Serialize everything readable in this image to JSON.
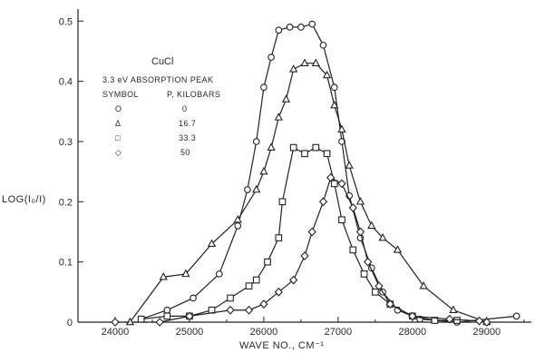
{
  "chart_data": {
    "type": "line",
    "title": "CuCl",
    "subtitle": "3.3 eV ABSORPTION PEAK",
    "xlabel": "WAVE NO., CM⁻¹",
    "ylabel": "LOG(I₀/I)",
    "xlim": [
      23500,
      29600
    ],
    "ylim": [
      0,
      0.52
    ],
    "x_ticks": [
      {
        "value": 24000,
        "label": "24000"
      },
      {
        "value": 25000,
        "label": "25000"
      },
      {
        "value": 26000,
        "label": "26000"
      },
      {
        "value": 27000,
        "label": "27000"
      },
      {
        "value": 28000,
        "label": "28000"
      },
      {
        "value": 29000,
        "label": "29000"
      }
    ],
    "y_ticks": [
      {
        "value": 0,
        "label": "0"
      },
      {
        "value": 0.1,
        "label": "0.1"
      },
      {
        "value": 0.2,
        "label": "0.2"
      },
      {
        "value": 0.3,
        "label": "0.3"
      },
      {
        "value": 0.4,
        "label": "0.4"
      },
      {
        "value": 0.5,
        "label": "0.5"
      }
    ],
    "grid": false,
    "legend": {
      "placement": "top-left",
      "header_symbol": "SYMBOL",
      "header_param": "P, KILOBARS",
      "entries": [
        {
          "symbol": "circle",
          "symbol_text": "O",
          "value": "0"
        },
        {
          "symbol": "triangle",
          "symbol_text": "Δ",
          "value": "16.7"
        },
        {
          "symbol": "square",
          "symbol_text": "□",
          "value": "33.3"
        },
        {
          "symbol": "diamond",
          "symbol_text": "◇",
          "value": "50"
        }
      ]
    },
    "series": [
      {
        "marker": "circle",
        "points": [
          [
            24350,
            0.005
          ],
          [
            24700,
            0.02
          ],
          [
            25050,
            0.04
          ],
          [
            25400,
            0.08
          ],
          [
            25650,
            0.16
          ],
          [
            25780,
            0.22
          ],
          [
            25900,
            0.3
          ],
          [
            26000,
            0.39
          ],
          [
            26100,
            0.44
          ],
          [
            26200,
            0.485
          ],
          [
            26350,
            0.49
          ],
          [
            26500,
            0.49
          ],
          [
            26650,
            0.495
          ],
          [
            26800,
            0.46
          ],
          [
            26950,
            0.39
          ],
          [
            27050,
            0.3
          ],
          [
            27150,
            0.21
          ],
          [
            27300,
            0.14
          ],
          [
            27450,
            0.09
          ],
          [
            27600,
            0.05
          ],
          [
            27800,
            0.02
          ],
          [
            28100,
            0.005
          ],
          [
            28600,
            0.0
          ],
          [
            29400,
            0.01
          ]
        ]
      },
      {
        "marker": "triangle",
        "points": [
          [
            24200,
            0.0
          ],
          [
            24650,
            0.075
          ],
          [
            24950,
            0.08
          ],
          [
            25300,
            0.13
          ],
          [
            25650,
            0.17
          ],
          [
            25900,
            0.22
          ],
          [
            26000,
            0.25
          ],
          [
            26100,
            0.29
          ],
          [
            26200,
            0.34
          ],
          [
            26300,
            0.37
          ],
          [
            26400,
            0.42
          ],
          [
            26550,
            0.43
          ],
          [
            26700,
            0.43
          ],
          [
            26850,
            0.41
          ],
          [
            26950,
            0.36
          ],
          [
            27050,
            0.32
          ],
          [
            27150,
            0.26
          ],
          [
            27300,
            0.2
          ],
          [
            27450,
            0.16
          ],
          [
            27600,
            0.14
          ],
          [
            27800,
            0.12
          ],
          [
            28150,
            0.06
          ],
          [
            28550,
            0.02
          ],
          [
            29000,
            0.0
          ]
        ]
      },
      {
        "marker": "square",
        "points": [
          [
            24350,
            0.005
          ],
          [
            24700,
            0.01
          ],
          [
            25000,
            0.01
          ],
          [
            25300,
            0.02
          ],
          [
            25550,
            0.04
          ],
          [
            25800,
            0.06
          ],
          [
            25900,
            0.07
          ],
          [
            26050,
            0.1
          ],
          [
            26200,
            0.14
          ],
          [
            26250,
            0.2
          ],
          [
            26400,
            0.29
          ],
          [
            26550,
            0.28
          ],
          [
            26700,
            0.29
          ],
          [
            26850,
            0.28
          ],
          [
            26950,
            0.23
          ],
          [
            27050,
            0.17
          ],
          [
            27200,
            0.12
          ],
          [
            27350,
            0.08
          ],
          [
            27500,
            0.05
          ],
          [
            27700,
            0.03
          ],
          [
            28000,
            0.01
          ],
          [
            28300,
            0.003
          ],
          [
            28600,
            0.003
          ]
        ]
      },
      {
        "marker": "diamond",
        "dashed_start": true,
        "points": [
          [
            24000,
            0.0
          ],
          [
            24600,
            0.0
          ],
          [
            25000,
            0.01
          ],
          [
            25550,
            0.02
          ],
          [
            25800,
            0.02
          ],
          [
            26000,
            0.03
          ],
          [
            26200,
            0.05
          ],
          [
            26400,
            0.07
          ],
          [
            26550,
            0.11
          ],
          [
            26650,
            0.15
          ],
          [
            26800,
            0.2
          ],
          [
            26900,
            0.24
          ],
          [
            27050,
            0.23
          ],
          [
            27200,
            0.19
          ],
          [
            27300,
            0.15
          ],
          [
            27400,
            0.1
          ],
          [
            27550,
            0.06
          ],
          [
            27700,
            0.03
          ],
          [
            28000,
            0.01
          ],
          [
            28500,
            0.005
          ],
          [
            28900,
            0.002
          ],
          [
            29000,
            0.0
          ]
        ]
      }
    ]
  }
}
